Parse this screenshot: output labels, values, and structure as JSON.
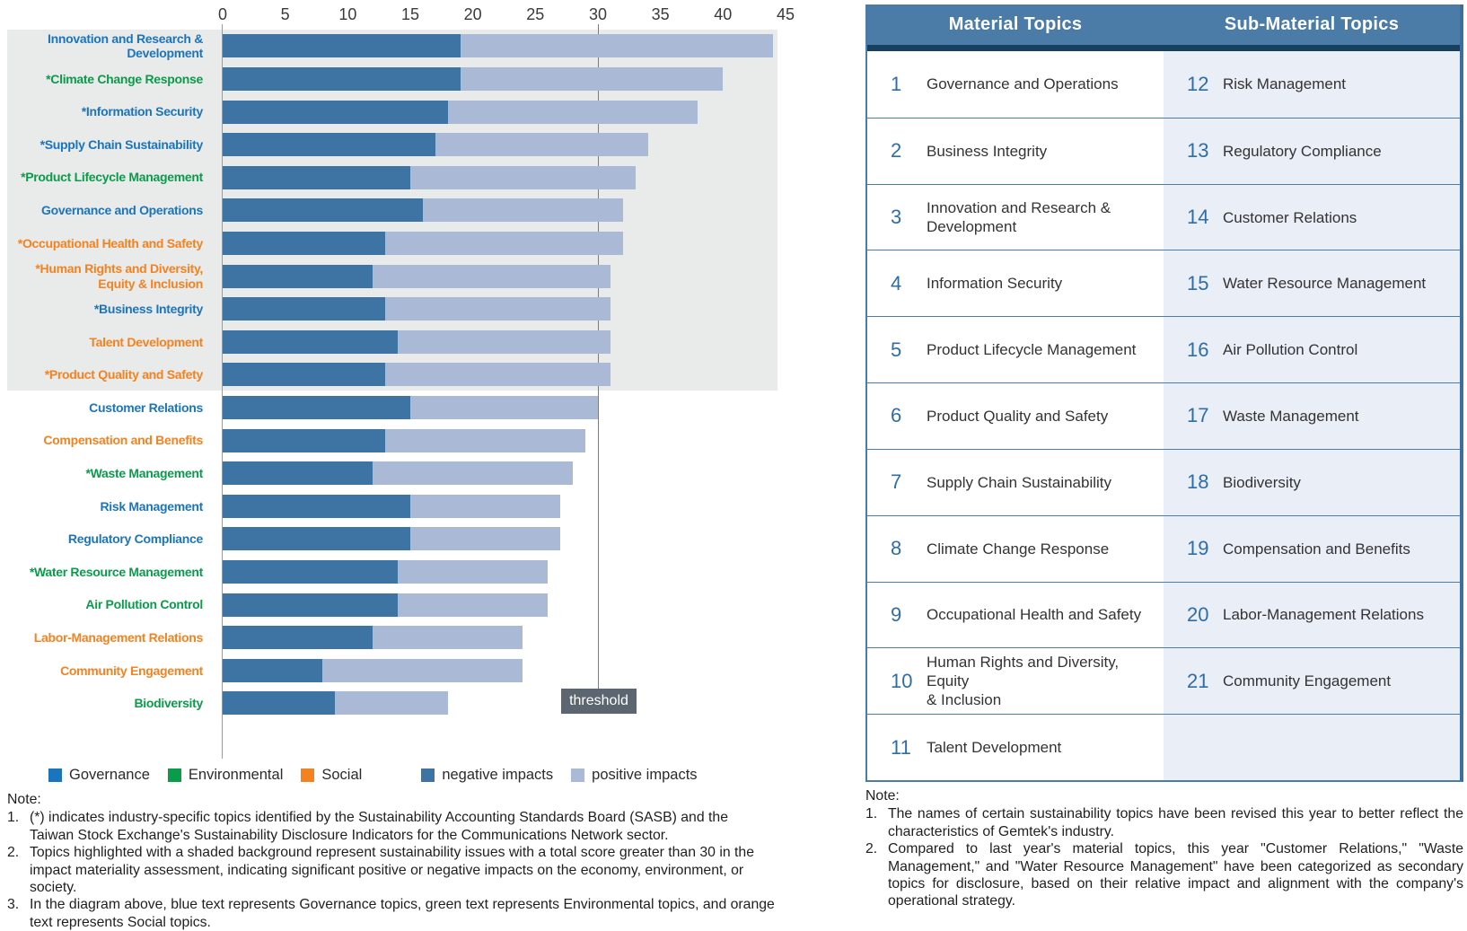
{
  "colors": {
    "governance": "#1b75bc",
    "environmental": "#0a9b4b",
    "social": "#f58220",
    "negative": "#3d74a4",
    "positive": "#aab9d6",
    "highlight_band": "#e9eaea",
    "threshold_box_bg": "#5c6670",
    "table_header_bg": "#4a7ca7",
    "table_header_strip": "#173f5f",
    "table_alt_bg": "#e9eef7",
    "table_number": "#2f6da7"
  },
  "chart_data": {
    "type": "bar",
    "orientation": "horizontal",
    "stacked": true,
    "x_axis": {
      "min": 0,
      "max": 45,
      "ticks": [
        0,
        5,
        10,
        15,
        20,
        25,
        30,
        35,
        40,
        45
      ],
      "position": "top"
    },
    "threshold": {
      "value": 30,
      "label": "threshold"
    },
    "series_names": [
      "negative impacts",
      "positive impacts"
    ],
    "rows": [
      {
        "label": "Innovation and Research &\nDevelopment",
        "category": "governance",
        "negative": 19,
        "positive": 25,
        "highlighted": true
      },
      {
        "label": "*Climate Change Response",
        "category": "environmental",
        "negative": 19,
        "positive": 21,
        "highlighted": true
      },
      {
        "label": "*Information Security",
        "category": "governance",
        "negative": 18,
        "positive": 20,
        "highlighted": true
      },
      {
        "label": "*Supply Chain Sustainability",
        "category": "governance",
        "negative": 17,
        "positive": 17,
        "highlighted": true
      },
      {
        "label": "*Product Lifecycle Management",
        "category": "environmental",
        "negative": 15,
        "positive": 18,
        "highlighted": true
      },
      {
        "label": "Governance and Operations",
        "category": "governance",
        "negative": 16,
        "positive": 16,
        "highlighted": true
      },
      {
        "label": "*Occupational Health and Safety",
        "category": "social",
        "negative": 13,
        "positive": 19,
        "highlighted": true
      },
      {
        "label": "*Human Rights and Diversity,\nEquity & Inclusion",
        "category": "social",
        "negative": 12,
        "positive": 19,
        "highlighted": true
      },
      {
        "label": "*Business Integrity",
        "category": "governance",
        "negative": 13,
        "positive": 18,
        "highlighted": true
      },
      {
        "label": "Talent Development",
        "category": "social",
        "negative": 14,
        "positive": 17,
        "highlighted": true
      },
      {
        "label": "*Product Quality and Safety",
        "category": "social",
        "negative": 13,
        "positive": 18,
        "highlighted": true
      },
      {
        "label": "Customer Relations",
        "category": "governance",
        "negative": 15,
        "positive": 15,
        "highlighted": false
      },
      {
        "label": "Compensation and Benefits",
        "category": "social",
        "negative": 13,
        "positive": 16,
        "highlighted": false
      },
      {
        "label": "*Waste Management",
        "category": "environmental",
        "negative": 12,
        "positive": 16,
        "highlighted": false
      },
      {
        "label": "Risk Management",
        "category": "governance",
        "negative": 15,
        "positive": 12,
        "highlighted": false
      },
      {
        "label": "Regulatory Compliance",
        "category": "governance",
        "negative": 15,
        "positive": 12,
        "highlighted": false
      },
      {
        "label": "*Water Resource Management",
        "category": "environmental",
        "negative": 14,
        "positive": 12,
        "highlighted": false
      },
      {
        "label": "Air Pollution Control",
        "category": "environmental",
        "negative": 14,
        "positive": 12,
        "highlighted": false
      },
      {
        "label": "Labor-Management Relations",
        "category": "social",
        "negative": 12,
        "positive": 12,
        "highlighted": false
      },
      {
        "label": "Community Engagement",
        "category": "social",
        "negative": 8,
        "positive": 16,
        "highlighted": false
      },
      {
        "label": "Biodiversity",
        "category": "environmental",
        "negative": 9,
        "positive": 9,
        "highlighted": false
      }
    ]
  },
  "legend": [
    {
      "label": "Governance",
      "color_key": "governance",
      "group": "category"
    },
    {
      "label": "Environmental",
      "color_key": "environmental",
      "group": "category"
    },
    {
      "label": "Social",
      "color_key": "social",
      "group": "category"
    },
    {
      "label": "negative impacts",
      "color_key": "negative",
      "group": "impact"
    },
    {
      "label": "positive impacts",
      "color_key": "positive",
      "group": "impact"
    }
  ],
  "notes_left": {
    "heading": "Note:",
    "items": [
      {
        "num": "1.",
        "text": "(*) indicates industry-specific topics identified by the Sustainability Accounting Standards Board (SASB) and the Taiwan Stock Exchange's Sustainability Disclosure Indicators for the Communications Network sector."
      },
      {
        "num": "2.",
        "text": "Topics highlighted with a shaded background represent sustainability issues with a total score greater than 30 in the impact materiality assessment, indicating significant positive or negative impacts on the economy, environment, or society."
      },
      {
        "num": "3.",
        "text": "In the diagram above, blue text represents Governance topics, green text represents Environmental topics, and orange text represents Social topics."
      }
    ]
  },
  "table": {
    "headers": [
      "Material Topics",
      "Sub-Material Topics"
    ],
    "material_topics": [
      {
        "num": "1",
        "label": "Governance and Operations"
      },
      {
        "num": "2",
        "label": "Business Integrity"
      },
      {
        "num": "3",
        "label": "Innovation and Research &\nDevelopment"
      },
      {
        "num": "4",
        "label": "Information Security"
      },
      {
        "num": "5",
        "label": "Product Lifecycle Management"
      },
      {
        "num": "6",
        "label": "Product Quality and Safety"
      },
      {
        "num": "7",
        "label": "Supply Chain Sustainability"
      },
      {
        "num": "8",
        "label": "Climate Change Response"
      },
      {
        "num": "9",
        "label": "Occupational Health and Safety"
      },
      {
        "num": "10",
        "label": "Human Rights and Diversity, Equity\n& Inclusion"
      },
      {
        "num": "11",
        "label": "Talent Development"
      }
    ],
    "sub_material_topics": [
      {
        "num": "12",
        "label": "Risk Management"
      },
      {
        "num": "13",
        "label": "Regulatory Compliance"
      },
      {
        "num": "14",
        "label": "Customer Relations"
      },
      {
        "num": "15",
        "label": "Water Resource Management"
      },
      {
        "num": "16",
        "label": "Air Pollution Control"
      },
      {
        "num": "17",
        "label": "Waste Management"
      },
      {
        "num": "18",
        "label": "Biodiversity"
      },
      {
        "num": "19",
        "label": "Compensation and Benefits"
      },
      {
        "num": "20",
        "label": "Labor-Management Relations"
      },
      {
        "num": "21",
        "label": "Community Engagement"
      },
      {
        "num": "",
        "label": ""
      }
    ]
  },
  "notes_right": {
    "heading": "Note:",
    "items": [
      {
        "num": "1.",
        "text": "The names of certain sustainability topics have been revised this year to better reflect the characteristics of Gemtek's industry."
      },
      {
        "num": "2.",
        "text": "Compared to last year's material topics, this year \"Customer Relations,\" \"Waste Management,\" and \"Water Resource Management\" have been categorized as secondary topics for disclosure, based on their relative impact and alignment with the company's operational strategy."
      }
    ]
  }
}
